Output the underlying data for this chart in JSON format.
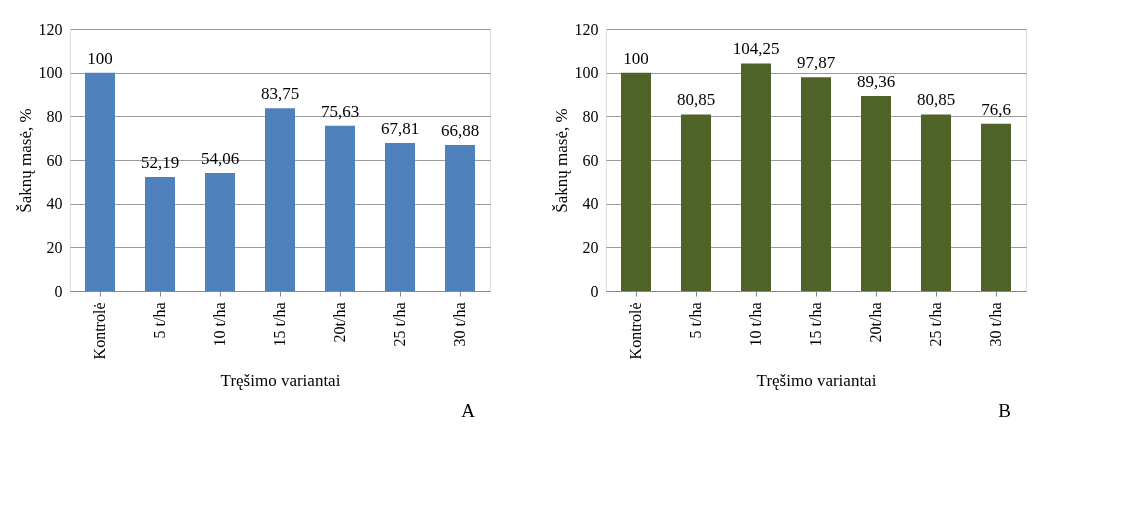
{
  "chart_data": [
    {
      "type": "bar",
      "xlabel": "Tręšimo variantai",
      "ylabel": "Šaknų masė, %",
      "categories": [
        "Kontrolė",
        "5 t/ha",
        "10 t/ha",
        "15 t/ha",
        "20t/ha",
        "25 t/ha",
        "30 t/ha"
      ],
      "values": [
        100,
        52.19,
        54.06,
        83.75,
        75.63,
        67.81,
        66.88
      ],
      "value_labels": [
        "100",
        "52,19",
        "54,06",
        "83,75",
        "75,63",
        "67,81",
        "66,88"
      ],
      "color": "#4f81bd",
      "ylim": [
        0,
        120
      ],
      "yticks": [
        0,
        20,
        40,
        60,
        80,
        100,
        120
      ],
      "grid": "y",
      "annotations": [
        "A"
      ]
    },
    {
      "type": "bar",
      "xlabel": "Tręšimo variantai",
      "ylabel": "Šaknų masė, %",
      "categories": [
        "Kontrolė",
        "5 t/ha",
        "10 t/ha",
        "15 t/ha",
        "20t/ha",
        "25 t/ha",
        "30 t/ha"
      ],
      "values": [
        100,
        80.85,
        104.25,
        97.87,
        89.36,
        80.85,
        76.6
      ],
      "value_labels": [
        "100",
        "80,85",
        "104,25",
        "97,87",
        "89,36",
        "80,85",
        "76,6"
      ],
      "color": "#4f6228",
      "ylim": [
        0,
        120
      ],
      "yticks": [
        0,
        20,
        40,
        60,
        80,
        100,
        120
      ],
      "grid": "y",
      "annotations": [
        "B"
      ]
    }
  ]
}
